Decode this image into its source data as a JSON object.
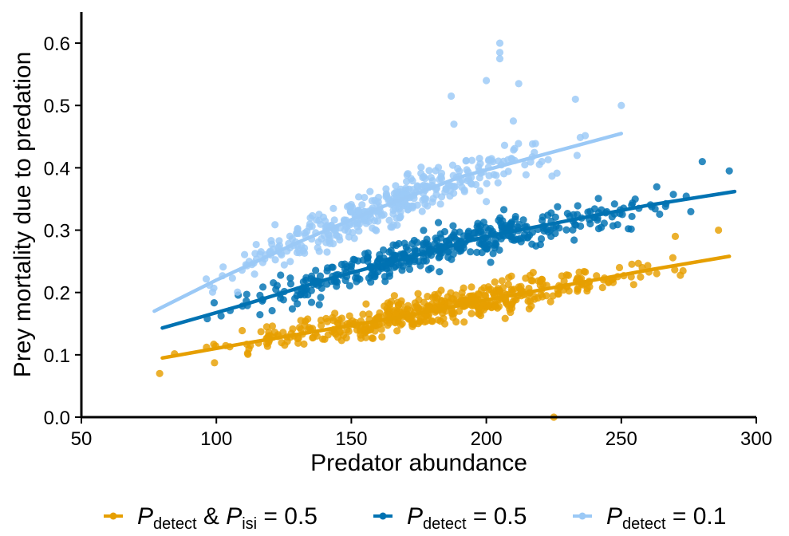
{
  "chart_data": {
    "type": "scatter",
    "xlabel": "Predator abundance",
    "ylabel": "Prey mortality due to predation",
    "xlim": [
      50,
      300
    ],
    "ylim": [
      0.0,
      0.65
    ],
    "x_ticks": [
      50,
      100,
      150,
      200,
      250,
      300
    ],
    "y_ticks": [
      0.0,
      0.1,
      0.2,
      0.3,
      0.4,
      0.5,
      0.6
    ],
    "x_tick_labels": [
      "50",
      "100",
      "150",
      "200",
      "250",
      "300"
    ],
    "y_tick_labels": [
      "0.0",
      "0.1",
      "0.2",
      "0.3",
      "0.4",
      "0.5",
      "0.6"
    ],
    "grid": false,
    "legend_position": "bottom",
    "series": [
      {
        "key": "detect_isi",
        "color": "#E69F00",
        "legend": {
          "p1": "P",
          "sub1": "detect",
          "amp": " & ",
          "p2": "P",
          "sub2": "isi",
          "tail": " = 0.5"
        },
        "x_range": [
          79,
          290
        ],
        "fit": [
          [
            80,
            0.095
          ],
          [
            110,
            0.118
          ],
          [
            140,
            0.14
          ],
          [
            170,
            0.162
          ],
          [
            200,
            0.188
          ],
          [
            230,
            0.212
          ],
          [
            260,
            0.236
          ],
          [
            290,
            0.258
          ]
        ],
        "noise": 0.022,
        "count": 500,
        "outliers": [
          [
            79,
            0.07
          ],
          [
            225,
            0.0
          ],
          [
            286,
            0.3
          ],
          [
            270,
            0.29
          ]
        ]
      },
      {
        "key": "detect_05",
        "color": "#0072B2",
        "legend": {
          "p1": "P",
          "sub1": "detect",
          "tail": " = 0.5"
        },
        "x_range": [
          80,
          292
        ],
        "fit": [
          [
            80,
            0.143
          ],
          [
            110,
            0.18
          ],
          [
            140,
            0.22
          ],
          [
            170,
            0.255
          ],
          [
            200,
            0.29
          ],
          [
            230,
            0.315
          ],
          [
            260,
            0.34
          ],
          [
            292,
            0.362
          ]
        ],
        "noise": 0.024,
        "count": 450,
        "outliers": [
          [
            290,
            0.395
          ],
          [
            280,
            0.41
          ]
        ]
      },
      {
        "key": "detect_01",
        "color": "#9BC9F6",
        "legend": {
          "p1": "P",
          "sub1": "detect",
          "tail": " = 0.1"
        },
        "x_range": [
          77,
          250
        ],
        "fit": [
          [
            77,
            0.17
          ],
          [
            100,
            0.22
          ],
          [
            130,
            0.28
          ],
          [
            160,
            0.335
          ],
          [
            190,
            0.385
          ],
          [
            220,
            0.42
          ],
          [
            250,
            0.455
          ]
        ],
        "noise": 0.03,
        "count": 380,
        "outliers": [
          [
            205,
            0.6
          ],
          [
            205,
            0.575
          ],
          [
            205,
            0.585
          ],
          [
            200,
            0.54
          ],
          [
            212,
            0.535
          ],
          [
            187,
            0.515
          ],
          [
            233,
            0.51
          ],
          [
            250,
            0.5
          ],
          [
            210,
            0.475
          ],
          [
            188,
            0.47
          ]
        ]
      }
    ]
  }
}
